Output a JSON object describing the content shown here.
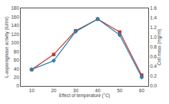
{
  "chart_data": {
    "type": "line",
    "xlabel": "Effect of temperature (°C)",
    "ylabel": "L-asparaginase activity (IU/ml)",
    "y2label": "Cell mass (mg/ml)",
    "x": [
      10,
      20,
      30,
      40,
      50,
      60
    ],
    "xlim": [
      5,
      63
    ],
    "xticks": [
      10,
      20,
      30,
      40,
      50,
      60
    ],
    "ylim": [
      0,
      180
    ],
    "yticks": [
      0,
      20,
      40,
      60,
      80,
      100,
      120,
      140,
      160,
      180
    ],
    "y2lim": [
      0,
      1.6
    ],
    "y2ticks": [
      {
        "value": 0,
        "label": "0.0"
      },
      0.2,
      0.4,
      0.6,
      0.8,
      {
        "value": 1.0,
        "label": "1.0"
      },
      1.2,
      1.4,
      1.6
    ],
    "grid": false,
    "series": [
      {
        "name": "L-asparaginase activity",
        "color": "#c0392b",
        "marker": "square",
        "values": [
          38,
          73,
          128,
          155,
          125,
          25
        ]
      },
      {
        "name": "Cell mass",
        "color": "#2980b9",
        "marker": "diamond",
        "axis": "y2",
        "values": [
          0.34,
          0.52,
          1.12,
          1.38,
          1.05,
          0.18
        ]
      }
    ]
  }
}
